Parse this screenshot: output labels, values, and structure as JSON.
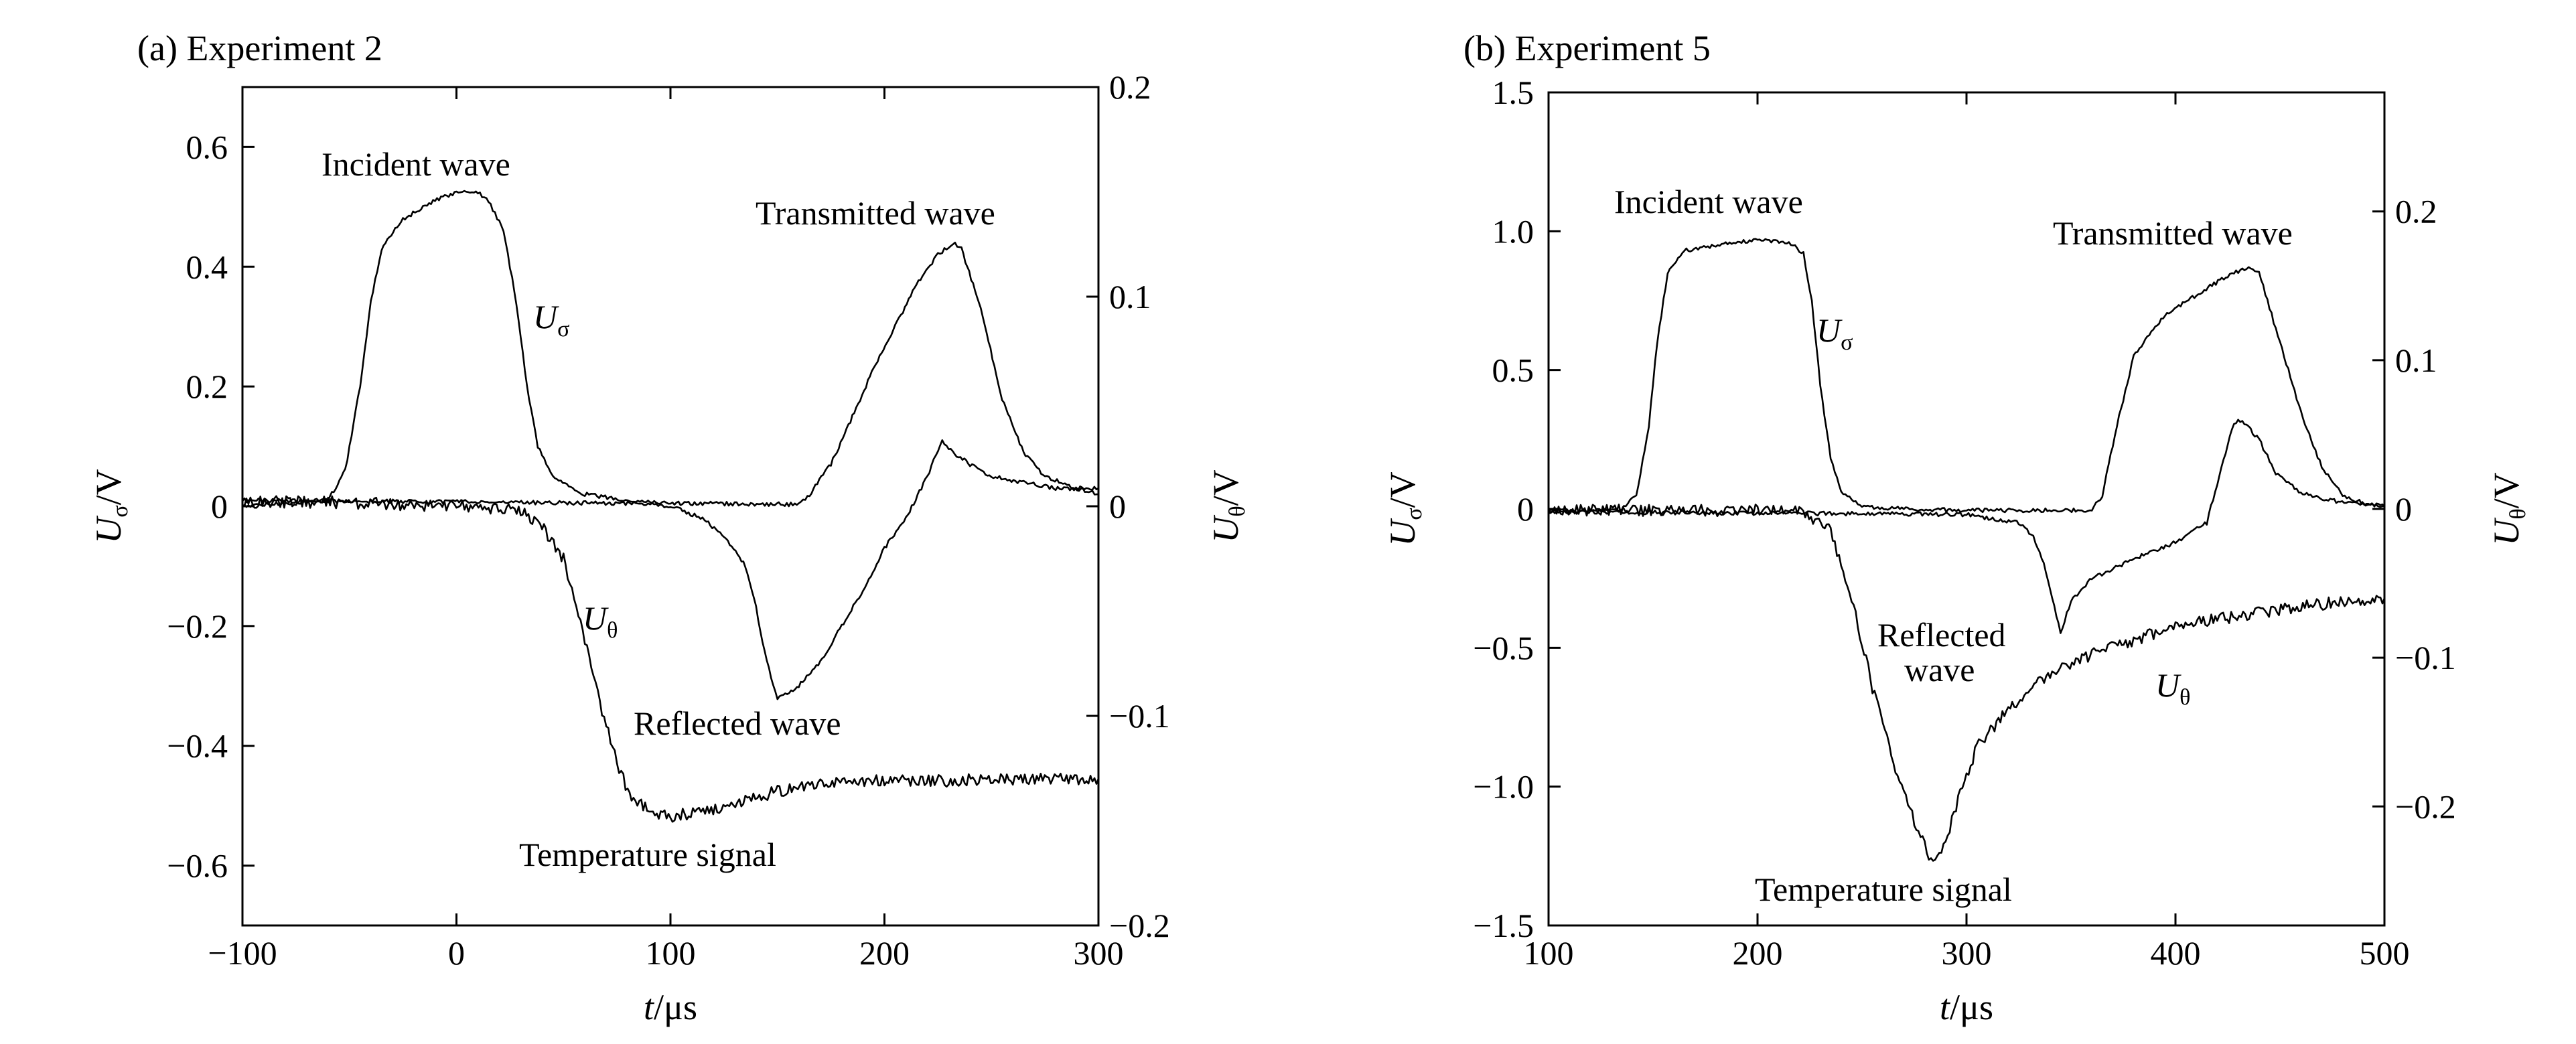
{
  "chart_data": [
    {
      "type": "line",
      "title": "(a) Experiment 2",
      "xlabel": "t/μs",
      "ylabel_left": "Uσ/V",
      "ylabel_right": "Uθ/V",
      "xlim": [
        -100,
        300
      ],
      "ylim_left": [
        -0.7,
        0.7
      ],
      "ylim_right": [
        -0.2,
        0.2
      ],
      "xticks": [
        "-100",
        "0",
        "100",
        "200",
        "300"
      ],
      "yticks_left": [
        "-0.6",
        "-0.4",
        "-0.2",
        "0",
        "0.2",
        "0.4",
        "0.6"
      ],
      "yticks_right": [
        "-0.2",
        "-0.1",
        "0",
        "0.1",
        "0.2"
      ],
      "grid": false,
      "series": [
        {
          "name": "Uσ",
          "axis": "left",
          "points": [
            [
              -100,
              0
            ],
            [
              -60,
              0.01
            ],
            [
              -52,
              0.06
            ],
            [
              -45,
              0.2
            ],
            [
              -40,
              0.34
            ],
            [
              -35,
              0.43
            ],
            [
              -25,
              0.48
            ],
            [
              -10,
              0.51
            ],
            [
              0,
              0.525
            ],
            [
              10,
              0.525
            ],
            [
              15,
              0.51
            ],
            [
              22,
              0.46
            ],
            [
              28,
              0.34
            ],
            [
              33,
              0.2
            ],
            [
              38,
              0.1
            ],
            [
              45,
              0.05
            ],
            [
              60,
              0.02
            ],
            [
              80,
              0.01
            ],
            [
              100,
              0.005
            ],
            [
              160,
              0.003
            ],
            [
              165,
              0.02
            ],
            [
              175,
              0.07
            ],
            [
              185,
              0.15
            ],
            [
              195,
              0.23
            ],
            [
              205,
              0.3
            ],
            [
              215,
              0.37
            ],
            [
              225,
              0.42
            ],
            [
              232,
              0.44
            ],
            [
              236,
              0.43
            ],
            [
              245,
              0.33
            ],
            [
              255,
              0.18
            ],
            [
              265,
              0.09
            ],
            [
              275,
              0.05
            ],
            [
              290,
              0.03
            ],
            [
              300,
              0.02
            ]
          ]
        },
        {
          "name": "Reflected wave",
          "axis": "left",
          "points": [
            [
              -100,
              0.01
            ],
            [
              80,
              0.005
            ],
            [
              100,
              0
            ],
            [
              115,
              -0.02
            ],
            [
              125,
              -0.05
            ],
            [
              135,
              -0.1
            ],
            [
              140,
              -0.17
            ],
            [
              145,
              -0.26
            ],
            [
              150,
              -0.32
            ],
            [
              160,
              -0.3
            ],
            [
              170,
              -0.26
            ],
            [
              180,
              -0.2
            ],
            [
              190,
              -0.14
            ],
            [
              200,
              -0.07
            ],
            [
              210,
              -0.02
            ],
            [
              220,
              0.05
            ],
            [
              227,
              0.11
            ],
            [
              232,
              0.09
            ],
            [
              240,
              0.07
            ],
            [
              250,
              0.05
            ],
            [
              265,
              0.04
            ],
            [
              280,
              0.03
            ],
            [
              300,
              0.03
            ]
          ]
        },
        {
          "name": "Uθ",
          "axis": "right",
          "points": [
            [
              -100,
              0.002
            ],
            [
              -60,
              0.002
            ],
            [
              0,
              0
            ],
            [
              30,
              -0.002
            ],
            [
              40,
              -0.01
            ],
            [
              50,
              -0.025
            ],
            [
              55,
              -0.045
            ],
            [
              60,
              -0.065
            ],
            [
              65,
              -0.085
            ],
            [
              70,
              -0.105
            ],
            [
              75,
              -0.122
            ],
            [
              80,
              -0.136
            ],
            [
              90,
              -0.145
            ],
            [
              100,
              -0.148
            ],
            [
              120,
              -0.145
            ],
            [
              150,
              -0.136
            ],
            [
              170,
              -0.132
            ],
            [
              200,
              -0.131
            ],
            [
              230,
              -0.131
            ],
            [
              260,
              -0.13
            ],
            [
              300,
              -0.13
            ]
          ]
        }
      ],
      "annotations": [
        "Incident wave",
        "Transmitted wave",
        "Reflected wave",
        "Temperature signal",
        "Uσ",
        "Uθ"
      ]
    },
    {
      "type": "line",
      "title": "(b) Experiment 5",
      "xlabel": "t/μs",
      "ylabel_left": "Uσ/V",
      "ylabel_right": "Uθ/V",
      "xlim": [
        100,
        500
      ],
      "ylim_left": [
        -1.5,
        1.5
      ],
      "ylim_right": [
        -0.28,
        0.28
      ],
      "xticks": [
        "100",
        "200",
        "300",
        "400",
        "500"
      ],
      "yticks_left": [
        "-1.5",
        "-1.0",
        "-0.5",
        "0",
        "0.5",
        "1.0",
        "1.5"
      ],
      "yticks_right": [
        "-0.2",
        "-0.1",
        "0",
        "0.1",
        "0.2"
      ],
      "grid": false,
      "series": [
        {
          "name": "Uσ",
          "axis": "left",
          "points": [
            [
              100,
              -0.01
            ],
            [
              135,
              0
            ],
            [
              142,
              0.05
            ],
            [
              148,
              0.3
            ],
            [
              152,
              0.6
            ],
            [
              157,
              0.85
            ],
            [
              165,
              0.93
            ],
            [
              180,
              0.95
            ],
            [
              200,
              0.97
            ],
            [
              215,
              0.96
            ],
            [
              222,
              0.92
            ],
            [
              226,
              0.75
            ],
            [
              230,
              0.45
            ],
            [
              235,
              0.18
            ],
            [
              240,
              0.06
            ],
            [
              250,
              0.01
            ],
            [
              270,
              0
            ],
            [
              300,
              -0.005
            ],
            [
              360,
              -0.005
            ],
            [
              365,
              0.05
            ],
            [
              372,
              0.3
            ],
            [
              380,
              0.55
            ],
            [
              395,
              0.7
            ],
            [
              410,
              0.77
            ],
            [
              425,
              0.84
            ],
            [
              435,
              0.87
            ],
            [
              440,
              0.85
            ],
            [
              450,
              0.6
            ],
            [
              460,
              0.35
            ],
            [
              470,
              0.15
            ],
            [
              480,
              0.05
            ],
            [
              490,
              0.02
            ],
            [
              500,
              0.01
            ]
          ]
        },
        {
          "name": "Reflected wave",
          "axis": "left",
          "points": [
            [
              100,
              -0.01
            ],
            [
              300,
              -0.02
            ],
            [
              325,
              -0.05
            ],
            [
              332,
              -0.1
            ],
            [
              337,
              -0.2
            ],
            [
              342,
              -0.35
            ],
            [
              345,
              -0.45
            ],
            [
              350,
              -0.33
            ],
            [
              360,
              -0.25
            ],
            [
              380,
              -0.18
            ],
            [
              400,
              -0.12
            ],
            [
              415,
              -0.05
            ],
            [
              422,
              0.15
            ],
            [
              428,
              0.31
            ],
            [
              432,
              0.32
            ],
            [
              440,
              0.25
            ],
            [
              448,
              0.13
            ],
            [
              460,
              0.06
            ],
            [
              475,
              0.03
            ],
            [
              500,
              0.01
            ]
          ]
        },
        {
          "name": "Uθ",
          "axis": "right",
          "points": [
            [
              100,
              -0.001
            ],
            [
              200,
              -0.001
            ],
            [
              220,
              -0.002
            ],
            [
              235,
              -0.015
            ],
            [
              245,
              -0.06
            ],
            [
              255,
              -0.12
            ],
            [
              265,
              -0.17
            ],
            [
              275,
              -0.21
            ],
            [
              283,
              -0.235
            ],
            [
              290,
              -0.225
            ],
            [
              297,
              -0.19
            ],
            [
              305,
              -0.16
            ],
            [
              320,
              -0.135
            ],
            [
              340,
              -0.11
            ],
            [
              360,
              -0.098
            ],
            [
              380,
              -0.088
            ],
            [
              400,
              -0.079
            ],
            [
              420,
              -0.074
            ],
            [
              440,
              -0.07
            ],
            [
              460,
              -0.066
            ],
            [
              480,
              -0.062
            ],
            [
              500,
              -0.06
            ]
          ]
        }
      ],
      "annotations": [
        "Incident wave",
        "Transmitted wave",
        "Reflected wave",
        "Temperature signal",
        "Uσ",
        "Uθ"
      ]
    }
  ]
}
